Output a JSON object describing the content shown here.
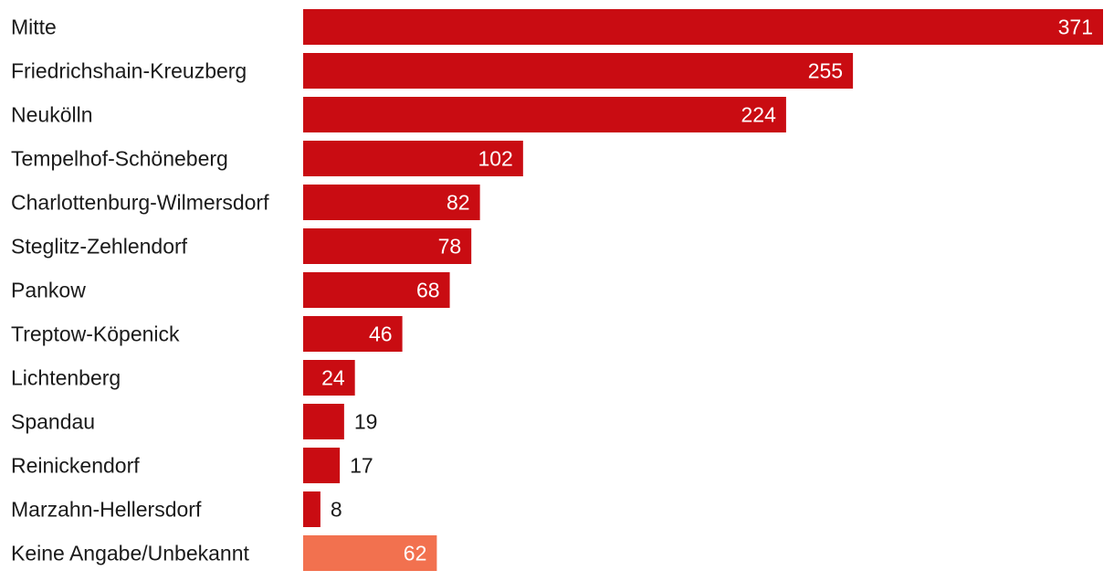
{
  "chart_data": {
    "type": "bar",
    "orientation": "horizontal",
    "title": "",
    "xlabel": "",
    "ylabel": "",
    "xlim": [
      0,
      371
    ],
    "grid": false,
    "legend": "none",
    "categories": [
      "Mitte",
      "Friedrichshain-Kreuzberg",
      "Neukölln",
      "Tempelhof-Schöneberg",
      "Charlottenburg-Wilmersdorf",
      "Steglitz-Zehlendorf",
      "Pankow",
      "Treptow-Köpenick",
      "Lichtenberg",
      "Spandau",
      "Reinickendorf",
      "Marzahn-Hellersdorf",
      "Keine Angabe/Unbekannt"
    ],
    "values": [
      371,
      255,
      224,
      102,
      82,
      78,
      68,
      46,
      24,
      19,
      17,
      8,
      62
    ],
    "value_labels": [
      "371",
      "255",
      "224",
      "102",
      "82",
      "78",
      "68",
      "46",
      "24",
      "19",
      "17",
      "8",
      "62"
    ],
    "colors": {
      "main": "#c90c12",
      "unknown": "#f2714f",
      "label_inside": "#ffffff",
      "label_outside": "#1a1a1a"
    },
    "highlight_last_category": true
  }
}
